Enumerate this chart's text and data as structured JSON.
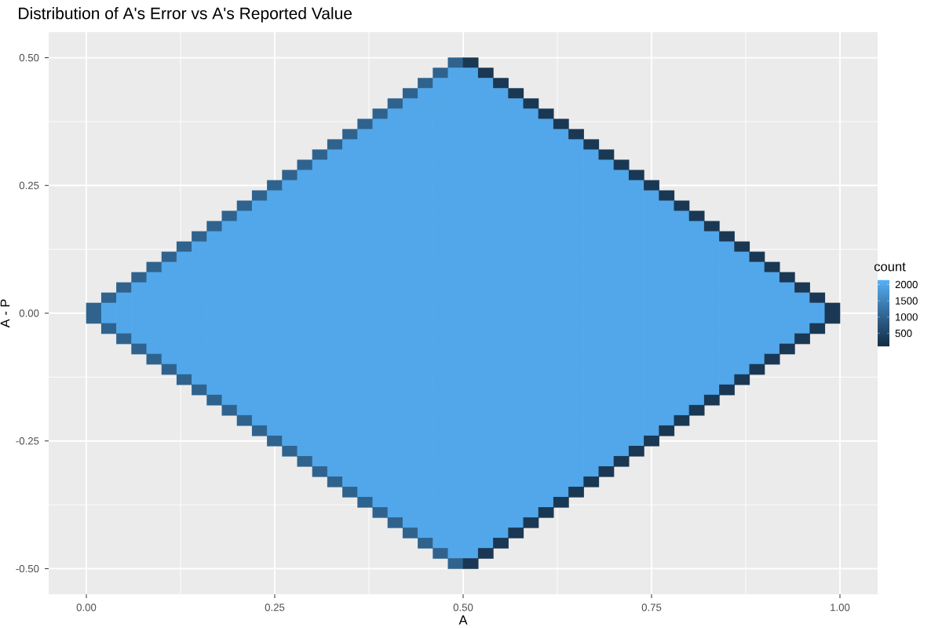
{
  "chart_data": {
    "type": "heatmap",
    "title": "Distribution of A's Error vs A's Reported Value",
    "xlabel": "A",
    "ylabel": "A - P",
    "clabel": "count",
    "x": [
      0.01,
      0.03,
      0.05,
      0.07,
      0.09,
      0.11,
      0.13,
      0.15,
      0.17,
      0.19,
      0.21,
      0.23,
      0.25,
      0.27,
      0.29,
      0.31,
      0.33,
      0.35,
      0.37,
      0.39,
      0.41,
      0.43,
      0.45,
      0.47,
      0.49,
      0.51,
      0.53,
      0.55,
      0.57,
      0.59,
      0.61,
      0.63,
      0.65,
      0.67,
      0.69,
      0.71,
      0.73,
      0.75,
      0.77,
      0.79,
      0.81,
      0.83,
      0.85,
      0.87,
      0.89,
      0.91,
      0.93,
      0.95,
      0.97,
      0.99
    ],
    "y": [
      0.49,
      0.47,
      0.45,
      0.43,
      0.41,
      0.39,
      0.37,
      0.35,
      0.33,
      0.31,
      0.29,
      0.27,
      0.25,
      0.23,
      0.21,
      0.19,
      0.17,
      0.15,
      0.13,
      0.11,
      0.09,
      0.07,
      0.05,
      0.03,
      0.01,
      -0.01,
      -0.03,
      -0.05,
      -0.07,
      -0.09,
      -0.11,
      -0.13,
      -0.15,
      -0.17,
      -0.19,
      -0.21,
      -0.23,
      -0.25,
      -0.27,
      -0.29,
      -0.31,
      -0.33,
      -0.35,
      -0.37,
      -0.39,
      -0.41,
      -0.43,
      -0.45,
      -0.47,
      -0.49
    ],
    "cells": [
      [
        null,
        null,
        null,
        null,
        null,
        null,
        null,
        null,
        null,
        null,
        null,
        null,
        null,
        null,
        null,
        null,
        null,
        null,
        null,
        null,
        null,
        null,
        null,
        null,
        1000,
        300,
        null,
        null,
        null,
        null,
        null,
        null,
        null,
        null,
        null,
        null,
        null,
        null,
        null,
        null,
        null,
        null,
        null,
        null,
        null,
        null,
        null,
        null,
        null,
        null
      ],
      [
        null,
        null,
        null,
        null,
        null,
        null,
        null,
        null,
        null,
        null,
        null,
        null,
        null,
        null,
        null,
        null,
        null,
        null,
        null,
        null,
        null,
        null,
        null,
        1000,
        2000,
        2000,
        300,
        null,
        null,
        null,
        null,
        null,
        null,
        null,
        null,
        null,
        null,
        null,
        null,
        null,
        null,
        null,
        null,
        null,
        null,
        null,
        null,
        null,
        null,
        null
      ],
      [
        null,
        null,
        null,
        null,
        null,
        null,
        null,
        null,
        null,
        null,
        null,
        null,
        null,
        null,
        null,
        null,
        null,
        null,
        null,
        null,
        null,
        null,
        1000,
        2000,
        2000,
        2000,
        2000,
        300,
        null,
        null,
        null,
        null,
        null,
        null,
        null,
        null,
        null,
        null,
        null,
        null,
        null,
        null,
        null,
        null,
        null,
        null,
        null,
        null,
        null,
        null
      ],
      [
        null,
        null,
        null,
        null,
        null,
        null,
        null,
        null,
        null,
        null,
        null,
        null,
        null,
        null,
        null,
        null,
        null,
        null,
        null,
        null,
        null,
        1000,
        2000,
        2000,
        2000,
        2000,
        2000,
        2000,
        300,
        null,
        null,
        null,
        null,
        null,
        null,
        null,
        null,
        null,
        null,
        null,
        null,
        null,
        null,
        null,
        null,
        null,
        null,
        null,
        null,
        null
      ],
      [
        null,
        null,
        null,
        null,
        null,
        null,
        null,
        null,
        null,
        null,
        null,
        null,
        null,
        null,
        null,
        null,
        null,
        null,
        null,
        null,
        1000,
        2000,
        2000,
        2000,
        2000,
        2000,
        2000,
        2000,
        2000,
        300,
        null,
        null,
        null,
        null,
        null,
        null,
        null,
        null,
        null,
        null,
        null,
        null,
        null,
        null,
        null,
        null,
        null,
        null,
        null,
        null
      ],
      [
        null,
        null,
        null,
        null,
        null,
        null,
        null,
        null,
        null,
        null,
        null,
        null,
        null,
        null,
        null,
        null,
        null,
        null,
        null,
        1000,
        2000,
        2000,
        2000,
        2000,
        2000,
        2000,
        2000,
        2000,
        2000,
        2000,
        300,
        null,
        null,
        null,
        null,
        null,
        null,
        null,
        null,
        null,
        null,
        null,
        null,
        null,
        null,
        null,
        null,
        null,
        null,
        null
      ],
      [
        null,
        null,
        null,
        null,
        null,
        null,
        null,
        null,
        null,
        null,
        null,
        null,
        null,
        null,
        null,
        null,
        null,
        null,
        1000,
        2000,
        2000,
        2000,
        2000,
        2000,
        2000,
        2000,
        2000,
        2000,
        2000,
        2000,
        2000,
        300,
        null,
        null,
        null,
        null,
        null,
        null,
        null,
        null,
        null,
        null,
        null,
        null,
        null,
        null,
        null,
        null,
        null,
        null
      ],
      [
        null,
        null,
        null,
        null,
        null,
        null,
        null,
        null,
        null,
        null,
        null,
        null,
        null,
        null,
        null,
        null,
        null,
        1000,
        2000,
        2000,
        2000,
        2000,
        2000,
        2000,
        2000,
        2000,
        2000,
        2000,
        2000,
        2000,
        2000,
        2000,
        300,
        null,
        null,
        null,
        null,
        null,
        null,
        null,
        null,
        null,
        null,
        null,
        null,
        null,
        null,
        null,
        null,
        null
      ],
      [
        null,
        null,
        null,
        null,
        null,
        null,
        null,
        null,
        null,
        null,
        null,
        null,
        null,
        null,
        null,
        null,
        1000,
        2000,
        2000,
        2000,
        2000,
        2000,
        2000,
        2000,
        2000,
        2000,
        2000,
        2000,
        2000,
        2000,
        2000,
        2000,
        2000,
        300,
        null,
        null,
        null,
        null,
        null,
        null,
        null,
        null,
        null,
        null,
        null,
        null,
        null,
        null,
        null,
        null
      ],
      [
        null,
        null,
        null,
        null,
        null,
        null,
        null,
        null,
        null,
        null,
        null,
        null,
        null,
        null,
        null,
        1000,
        2000,
        2000,
        2000,
        2000,
        2000,
        2000,
        2000,
        2000,
        2000,
        2000,
        2000,
        2000,
        2000,
        2000,
        2000,
        2000,
        2000,
        2000,
        300,
        null,
        null,
        null,
        null,
        null,
        null,
        null,
        null,
        null,
        null,
        null,
        null,
        null,
        null,
        null
      ],
      [
        null,
        null,
        null,
        null,
        null,
        null,
        null,
        null,
        null,
        null,
        null,
        null,
        null,
        null,
        1000,
        2000,
        2000,
        2000,
        2000,
        2000,
        2000,
        2000,
        2000,
        2000,
        2000,
        2000,
        2000,
        2000,
        2000,
        2000,
        2000,
        2000,
        2000,
        2000,
        2000,
        300,
        null,
        null,
        null,
        null,
        null,
        null,
        null,
        null,
        null,
        null,
        null,
        null,
        null,
        null
      ],
      [
        null,
        null,
        null,
        null,
        null,
        null,
        null,
        null,
        null,
        null,
        null,
        null,
        null,
        1000,
        2000,
        2000,
        2000,
        2000,
        2000,
        2000,
        2000,
        2000,
        2000,
        2000,
        2000,
        2000,
        2000,
        2000,
        2000,
        2000,
        2000,
        2000,
        2000,
        2000,
        2000,
        2000,
        300,
        null,
        null,
        null,
        null,
        null,
        null,
        null,
        null,
        null,
        null,
        null,
        null,
        null
      ],
      [
        null,
        null,
        null,
        null,
        null,
        null,
        null,
        null,
        null,
        null,
        null,
        null,
        1000,
        2000,
        2000,
        2000,
        2000,
        2000,
        2000,
        2000,
        2000,
        2000,
        2000,
        2000,
        2000,
        2000,
        2000,
        2000,
        2000,
        2000,
        2000,
        2000,
        2000,
        2000,
        2000,
        2000,
        2000,
        300,
        null,
        null,
        null,
        null,
        null,
        null,
        null,
        null,
        null,
        null,
        null,
        null
      ],
      [
        null,
        null,
        null,
        null,
        null,
        null,
        null,
        null,
        null,
        null,
        null,
        1000,
        2000,
        2000,
        2000,
        2000,
        2000,
        2000,
        2000,
        2000,
        2000,
        2000,
        2000,
        2000,
        2000,
        2000,
        2000,
        2000,
        2000,
        2000,
        2000,
        2000,
        2000,
        2000,
        2000,
        2000,
        2000,
        2000,
        300,
        null,
        null,
        null,
        null,
        null,
        null,
        null,
        null,
        null,
        null,
        null
      ],
      [
        null,
        null,
        null,
        null,
        null,
        null,
        null,
        null,
        null,
        null,
        1000,
        2000,
        2000,
        2000,
        2000,
        2000,
        2000,
        2000,
        2000,
        2000,
        2000,
        2000,
        2000,
        2000,
        2000,
        2000,
        2000,
        2000,
        2000,
        2000,
        2000,
        2000,
        2000,
        2000,
        2000,
        2000,
        2000,
        2000,
        2000,
        300,
        null,
        null,
        null,
        null,
        null,
        null,
        null,
        null,
        null,
        null
      ],
      [
        null,
        null,
        null,
        null,
        null,
        null,
        null,
        null,
        null,
        1000,
        2000,
        2000,
        2000,
        2000,
        2000,
        2000,
        2000,
        2000,
        2000,
        2000,
        2000,
        2000,
        2000,
        2000,
        2000,
        2000,
        2000,
        2000,
        2000,
        2000,
        2000,
        2000,
        2000,
        2000,
        2000,
        2000,
        2000,
        2000,
        2000,
        2000,
        300,
        null,
        null,
        null,
        null,
        null,
        null,
        null,
        null,
        null
      ],
      [
        null,
        null,
        null,
        null,
        null,
        null,
        null,
        null,
        1000,
        2000,
        2000,
        2000,
        2000,
        2000,
        2000,
        2000,
        2000,
        2000,
        2000,
        2000,
        2000,
        2000,
        2000,
        2000,
        2000,
        2000,
        2000,
        2000,
        2000,
        2000,
        2000,
        2000,
        2000,
        2000,
        2000,
        2000,
        2000,
        2000,
        2000,
        2000,
        2000,
        300,
        null,
        null,
        null,
        null,
        null,
        null,
        null,
        null
      ],
      [
        null,
        null,
        null,
        null,
        null,
        null,
        null,
        1000,
        2000,
        2000,
        2000,
        2000,
        2000,
        2000,
        2000,
        2000,
        2000,
        2000,
        2000,
        2000,
        2000,
        2000,
        2000,
        2000,
        2000,
        2000,
        2000,
        2000,
        2000,
        2000,
        2000,
        2000,
        2000,
        2000,
        2000,
        2000,
        2000,
        2000,
        2000,
        2000,
        2000,
        2000,
        300,
        null,
        null,
        null,
        null,
        null,
        null,
        null
      ],
      [
        null,
        null,
        null,
        null,
        null,
        null,
        1000,
        2000,
        2000,
        2000,
        2000,
        2000,
        2000,
        2000,
        2000,
        2000,
        2000,
        2000,
        2000,
        2000,
        2000,
        2000,
        2000,
        2000,
        2000,
        2000,
        2000,
        2000,
        2000,
        2000,
        2000,
        2000,
        2000,
        2000,
        2000,
        2000,
        2000,
        2000,
        2000,
        2000,
        2000,
        2000,
        2000,
        300,
        null,
        null,
        null,
        null,
        null,
        null
      ],
      [
        null,
        null,
        null,
        null,
        null,
        1000,
        2000,
        2000,
        2000,
        2000,
        2000,
        2000,
        2000,
        2000,
        2000,
        2000,
        2000,
        2000,
        2000,
        2000,
        2000,
        2000,
        2000,
        2000,
        2000,
        2000,
        2000,
        2000,
        2000,
        2000,
        2000,
        2000,
        2000,
        2000,
        2000,
        2000,
        2000,
        2000,
        2000,
        2000,
        2000,
        2000,
        2000,
        2000,
        300,
        null,
        null,
        null,
        null,
        null
      ],
      [
        null,
        null,
        null,
        null,
        1000,
        2000,
        2000,
        2000,
        2000,
        2000,
        2000,
        2000,
        2000,
        2000,
        2000,
        2000,
        2000,
        2000,
        2000,
        2000,
        2000,
        2000,
        2000,
        2000,
        2000,
        2000,
        2000,
        2000,
        2000,
        2000,
        2000,
        2000,
        2000,
        2000,
        2000,
        2000,
        2000,
        2000,
        2000,
        2000,
        2000,
        2000,
        2000,
        2000,
        2000,
        300,
        null,
        null,
        null,
        null
      ],
      [
        null,
        null,
        null,
        1000,
        2000,
        2000,
        2000,
        2000,
        2000,
        2000,
        2000,
        2000,
        2000,
        2000,
        2000,
        2000,
        2000,
        2000,
        2000,
        2000,
        2000,
        2000,
        2000,
        2000,
        2000,
        2000,
        2000,
        2000,
        2000,
        2000,
        2000,
        2000,
        2000,
        2000,
        2000,
        2000,
        2000,
        2000,
        2000,
        2000,
        2000,
        2000,
        2000,
        2000,
        2000,
        2000,
        300,
        null,
        null,
        null
      ],
      [
        null,
        null,
        1000,
        2000,
        2000,
        2000,
        2000,
        2000,
        2000,
        2000,
        2000,
        2000,
        2000,
        2000,
        2000,
        2000,
        2000,
        2000,
        2000,
        2000,
        2000,
        2000,
        2000,
        2000,
        2000,
        2000,
        2000,
        2000,
        2000,
        2000,
        2000,
        2000,
        2000,
        2000,
        2000,
        2000,
        2000,
        2000,
        2000,
        2000,
        2000,
        2000,
        2000,
        2000,
        2000,
        2000,
        2000,
        300,
        null,
        null
      ],
      [
        null,
        1000,
        2000,
        2000,
        2000,
        2000,
        2000,
        2000,
        2000,
        2000,
        2000,
        2000,
        2000,
        2000,
        2000,
        2000,
        2000,
        2000,
        2000,
        2000,
        2000,
        2000,
        2000,
        2000,
        2000,
        2000,
        2000,
        2000,
        2000,
        2000,
        2000,
        2000,
        2000,
        2000,
        2000,
        2000,
        2000,
        2000,
        2000,
        2000,
        2000,
        2000,
        2000,
        2000,
        2000,
        2000,
        2000,
        2000,
        300,
        null
      ],
      [
        1000,
        2000,
        2000,
        2000,
        2000,
        2000,
        2000,
        2000,
        2000,
        2000,
        2000,
        2000,
        2000,
        2000,
        2000,
        2000,
        2000,
        2000,
        2000,
        2000,
        2000,
        2000,
        2000,
        2000,
        2000,
        2000,
        2000,
        2000,
        2000,
        2000,
        2000,
        2000,
        2000,
        2000,
        2000,
        2000,
        2000,
        2000,
        2000,
        2000,
        2000,
        2000,
        2000,
        2000,
        2000,
        2000,
        2000,
        2000,
        2000,
        300
      ],
      [
        1000,
        2000,
        2000,
        2000,
        2000,
        2000,
        2000,
        2000,
        2000,
        2000,
        2000,
        2000,
        2000,
        2000,
        2000,
        2000,
        2000,
        2000,
        2000,
        2000,
        2000,
        2000,
        2000,
        2000,
        2000,
        2000,
        2000,
        2000,
        2000,
        2000,
        2000,
        2000,
        2000,
        2000,
        2000,
        2000,
        2000,
        2000,
        2000,
        2000,
        2000,
        2000,
        2000,
        2000,
        2000,
        2000,
        2000,
        2000,
        2000,
        300
      ],
      [
        null,
        1000,
        2000,
        2000,
        2000,
        2000,
        2000,
        2000,
        2000,
        2000,
        2000,
        2000,
        2000,
        2000,
        2000,
        2000,
        2000,
        2000,
        2000,
        2000,
        2000,
        2000,
        2000,
        2000,
        2000,
        2000,
        2000,
        2000,
        2000,
        2000,
        2000,
        2000,
        2000,
        2000,
        2000,
        2000,
        2000,
        2000,
        2000,
        2000,
        2000,
        2000,
        2000,
        2000,
        2000,
        2000,
        2000,
        2000,
        300,
        null
      ],
      [
        null,
        null,
        1000,
        2000,
        2000,
        2000,
        2000,
        2000,
        2000,
        2000,
        2000,
        2000,
        2000,
        2000,
        2000,
        2000,
        2000,
        2000,
        2000,
        2000,
        2000,
        2000,
        2000,
        2000,
        2000,
        2000,
        2000,
        2000,
        2000,
        2000,
        2000,
        2000,
        2000,
        2000,
        2000,
        2000,
        2000,
        2000,
        2000,
        2000,
        2000,
        2000,
        2000,
        2000,
        2000,
        2000,
        2000,
        300,
        null,
        null
      ],
      [
        null,
        null,
        null,
        1000,
        2000,
        2000,
        2000,
        2000,
        2000,
        2000,
        2000,
        2000,
        2000,
        2000,
        2000,
        2000,
        2000,
        2000,
        2000,
        2000,
        2000,
        2000,
        2000,
        2000,
        2000,
        2000,
        2000,
        2000,
        2000,
        2000,
        2000,
        2000,
        2000,
        2000,
        2000,
        2000,
        2000,
        2000,
        2000,
        2000,
        2000,
        2000,
        2000,
        2000,
        2000,
        2000,
        300,
        null,
        null,
        null
      ],
      [
        null,
        null,
        null,
        null,
        1000,
        2000,
        2000,
        2000,
        2000,
        2000,
        2000,
        2000,
        2000,
        2000,
        2000,
        2000,
        2000,
        2000,
        2000,
        2000,
        2000,
        2000,
        2000,
        2000,
        2000,
        2000,
        2000,
        2000,
        2000,
        2000,
        2000,
        2000,
        2000,
        2000,
        2000,
        2000,
        2000,
        2000,
        2000,
        2000,
        2000,
        2000,
        2000,
        2000,
        2000,
        300,
        null,
        null,
        null,
        null
      ],
      [
        null,
        null,
        null,
        null,
        null,
        1000,
        2000,
        2000,
        2000,
        2000,
        2000,
        2000,
        2000,
        2000,
        2000,
        2000,
        2000,
        2000,
        2000,
        2000,
        2000,
        2000,
        2000,
        2000,
        2000,
        2000,
        2000,
        2000,
        2000,
        2000,
        2000,
        2000,
        2000,
        2000,
        2000,
        2000,
        2000,
        2000,
        2000,
        2000,
        2000,
        2000,
        2000,
        2000,
        300,
        null,
        null,
        null,
        null,
        null
      ],
      [
        null,
        null,
        null,
        null,
        null,
        null,
        1000,
        2000,
        2000,
        2000,
        2000,
        2000,
        2000,
        2000,
        2000,
        2000,
        2000,
        2000,
        2000,
        2000,
        2000,
        2000,
        2000,
        2000,
        2000,
        2000,
        2000,
        2000,
        2000,
        2000,
        2000,
        2000,
        2000,
        2000,
        2000,
        2000,
        2000,
        2000,
        2000,
        2000,
        2000,
        2000,
        2000,
        300,
        null,
        null,
        null,
        null,
        null,
        null
      ],
      [
        null,
        null,
        null,
        null,
        null,
        null,
        null,
        1000,
        2000,
        2000,
        2000,
        2000,
        2000,
        2000,
        2000,
        2000,
        2000,
        2000,
        2000,
        2000,
        2000,
        2000,
        2000,
        2000,
        2000,
        2000,
        2000,
        2000,
        2000,
        2000,
        2000,
        2000,
        2000,
        2000,
        2000,
        2000,
        2000,
        2000,
        2000,
        2000,
        2000,
        2000,
        300,
        null,
        null,
        null,
        null,
        null,
        null,
        null
      ],
      [
        null,
        null,
        null,
        null,
        null,
        null,
        null,
        null,
        1000,
        2000,
        2000,
        2000,
        2000,
        2000,
        2000,
        2000,
        2000,
        2000,
        2000,
        2000,
        2000,
        2000,
        2000,
        2000,
        2000,
        2000,
        2000,
        2000,
        2000,
        2000,
        2000,
        2000,
        2000,
        2000,
        2000,
        2000,
        2000,
        2000,
        2000,
        2000,
        2000,
        300,
        null,
        null,
        null,
        null,
        null,
        null,
        null,
        null
      ],
      [
        null,
        null,
        null,
        null,
        null,
        null,
        null,
        null,
        null,
        1000,
        2000,
        2000,
        2000,
        2000,
        2000,
        2000,
        2000,
        2000,
        2000,
        2000,
        2000,
        2000,
        2000,
        2000,
        2000,
        2000,
        2000,
        2000,
        2000,
        2000,
        2000,
        2000,
        2000,
        2000,
        2000,
        2000,
        2000,
        2000,
        2000,
        2000,
        300,
        null,
        null,
        null,
        null,
        null,
        null,
        null,
        null,
        null
      ],
      [
        null,
        null,
        null,
        null,
        null,
        null,
        null,
        null,
        null,
        null,
        1000,
        2000,
        2000,
        2000,
        2000,
        2000,
        2000,
        2000,
        2000,
        2000,
        2000,
        2000,
        2000,
        2000,
        2000,
        2000,
        2000,
        2000,
        2000,
        2000,
        2000,
        2000,
        2000,
        2000,
        2000,
        2000,
        2000,
        2000,
        2000,
        300,
        null,
        null,
        null,
        null,
        null,
        null,
        null,
        null,
        null,
        null
      ],
      [
        null,
        null,
        null,
        null,
        null,
        null,
        null,
        null,
        null,
        null,
        null,
        1000,
        2000,
        2000,
        2000,
        2000,
        2000,
        2000,
        2000,
        2000,
        2000,
        2000,
        2000,
        2000,
        2000,
        2000,
        2000,
        2000,
        2000,
        2000,
        2000,
        2000,
        2000,
        2000,
        2000,
        2000,
        2000,
        2000,
        300,
        null,
        null,
        null,
        null,
        null,
        null,
        null,
        null,
        null,
        null,
        null
      ],
      [
        null,
        null,
        null,
        null,
        null,
        null,
        null,
        null,
        null,
        null,
        null,
        null,
        1000,
        2000,
        2000,
        2000,
        2000,
        2000,
        2000,
        2000,
        2000,
        2000,
        2000,
        2000,
        2000,
        2000,
        2000,
        2000,
        2000,
        2000,
        2000,
        2000,
        2000,
        2000,
        2000,
        2000,
        2000,
        300,
        null,
        null,
        null,
        null,
        null,
        null,
        null,
        null,
        null,
        null,
        null,
        null
      ],
      [
        null,
        null,
        null,
        null,
        null,
        null,
        null,
        null,
        null,
        null,
        null,
        null,
        null,
        1000,
        2000,
        2000,
        2000,
        2000,
        2000,
        2000,
        2000,
        2000,
        2000,
        2000,
        2000,
        2000,
        2000,
        2000,
        2000,
        2000,
        2000,
        2000,
        2000,
        2000,
        2000,
        2000,
        300,
        null,
        null,
        null,
        null,
        null,
        null,
        null,
        null,
        null,
        null,
        null,
        null,
        null
      ],
      [
        null,
        null,
        null,
        null,
        null,
        null,
        null,
        null,
        null,
        null,
        null,
        null,
        null,
        null,
        1000,
        2000,
        2000,
        2000,
        2000,
        2000,
        2000,
        2000,
        2000,
        2000,
        2000,
        2000,
        2000,
        2000,
        2000,
        2000,
        2000,
        2000,
        2000,
        2000,
        2000,
        300,
        null,
        null,
        null,
        null,
        null,
        null,
        null,
        null,
        null,
        null,
        null,
        null,
        null,
        null
      ],
      [
        null,
        null,
        null,
        null,
        null,
        null,
        null,
        null,
        null,
        null,
        null,
        null,
        null,
        null,
        null,
        1000,
        2000,
        2000,
        2000,
        2000,
        2000,
        2000,
        2000,
        2000,
        2000,
        2000,
        2000,
        2000,
        2000,
        2000,
        2000,
        2000,
        2000,
        2000,
        300,
        null,
        null,
        null,
        null,
        null,
        null,
        null,
        null,
        null,
        null,
        null,
        null,
        null,
        null,
        null
      ],
      [
        null,
        null,
        null,
        null,
        null,
        null,
        null,
        null,
        null,
        null,
        null,
        null,
        null,
        null,
        null,
        null,
        1000,
        2000,
        2000,
        2000,
        2000,
        2000,
        2000,
        2000,
        2000,
        2000,
        2000,
        2000,
        2000,
        2000,
        2000,
        2000,
        2000,
        300,
        null,
        null,
        null,
        null,
        null,
        null,
        null,
        null,
        null,
        null,
        null,
        null,
        null,
        null,
        null,
        null
      ],
      [
        null,
        null,
        null,
        null,
        null,
        null,
        null,
        null,
        null,
        null,
        null,
        null,
        null,
        null,
        null,
        null,
        null,
        1000,
        2000,
        2000,
        2000,
        2000,
        2000,
        2000,
        2000,
        2000,
        2000,
        2000,
        2000,
        2000,
        2000,
        2000,
        300,
        null,
        null,
        null,
        null,
        null,
        null,
        null,
        null,
        null,
        null,
        null,
        null,
        null,
        null,
        null,
        null,
        null
      ],
      [
        null,
        null,
        null,
        null,
        null,
        null,
        null,
        null,
        null,
        null,
        null,
        null,
        null,
        null,
        null,
        null,
        null,
        null,
        1000,
        2000,
        2000,
        2000,
        2000,
        2000,
        2000,
        2000,
        2000,
        2000,
        2000,
        2000,
        2000,
        300,
        null,
        null,
        null,
        null,
        null,
        null,
        null,
        null,
        null,
        null,
        null,
        null,
        null,
        null,
        null,
        null,
        null,
        null
      ],
      [
        null,
        null,
        null,
        null,
        null,
        null,
        null,
        null,
        null,
        null,
        null,
        null,
        null,
        null,
        null,
        null,
        null,
        null,
        null,
        1000,
        2000,
        2000,
        2000,
        2000,
        2000,
        2000,
        2000,
        2000,
        2000,
        2000,
        300,
        null,
        null,
        null,
        null,
        null,
        null,
        null,
        null,
        null,
        null,
        null,
        null,
        null,
        null,
        null,
        null,
        null,
        null,
        null
      ],
      [
        null,
        null,
        null,
        null,
        null,
        null,
        null,
        null,
        null,
        null,
        null,
        null,
        null,
        null,
        null,
        null,
        null,
        null,
        null,
        null,
        1000,
        2000,
        2000,
        2000,
        2000,
        2000,
        2000,
        2000,
        2000,
        300,
        null,
        null,
        null,
        null,
        null,
        null,
        null,
        null,
        null,
        null,
        null,
        null,
        null,
        null,
        null,
        null,
        null,
        null,
        null,
        null
      ],
      [
        null,
        null,
        null,
        null,
        null,
        null,
        null,
        null,
        null,
        null,
        null,
        null,
        null,
        null,
        null,
        null,
        null,
        null,
        null,
        null,
        null,
        1000,
        2000,
        2000,
        2000,
        2000,
        2000,
        2000,
        300,
        null,
        null,
        null,
        null,
        null,
        null,
        null,
        null,
        null,
        null,
        null,
        null,
        null,
        null,
        null,
        null,
        null,
        null,
        null,
        null,
        null
      ],
      [
        null,
        null,
        null,
        null,
        null,
        null,
        null,
        null,
        null,
        null,
        null,
        null,
        null,
        null,
        null,
        null,
        null,
        null,
        null,
        null,
        null,
        null,
        1000,
        2000,
        2000,
        2000,
        2000,
        300,
        null,
        null,
        null,
        null,
        null,
        null,
        null,
        null,
        null,
        null,
        null,
        null,
        null,
        null,
        null,
        null,
        null,
        null,
        null,
        null,
        null,
        null
      ],
      [
        null,
        null,
        null,
        null,
        null,
        null,
        null,
        null,
        null,
        null,
        null,
        null,
        null,
        null,
        null,
        null,
        null,
        null,
        null,
        null,
        null,
        null,
        null,
        1000,
        2000,
        2000,
        300,
        null,
        null,
        null,
        null,
        null,
        null,
        null,
        null,
        null,
        null,
        null,
        null,
        null,
        null,
        null,
        null,
        null,
        null,
        null,
        null,
        null,
        null,
        null
      ],
      [
        null,
        null,
        null,
        null,
        null,
        null,
        null,
        null,
        null,
        null,
        null,
        null,
        null,
        null,
        null,
        null,
        null,
        null,
        null,
        null,
        null,
        null,
        null,
        null,
        1000,
        300,
        null,
        null,
        null,
        null,
        null,
        null,
        null,
        null,
        null,
        null,
        null,
        null,
        null,
        null,
        null,
        null,
        null,
        null,
        null,
        null,
        null,
        null,
        null,
        null
      ]
    ],
    "clim": [
      90,
      2145
    ],
    "cticks": [
      500,
      1000,
      1500,
      2000
    ],
    "xlim": [
      -0.05,
      1.05
    ],
    "ylim": [
      -0.55,
      0.55
    ],
    "xticks": [
      {
        "value": 0,
        "label": "0.00"
      },
      {
        "value": 0.25,
        "label": "0.25"
      },
      {
        "value": 0.5,
        "label": "0.50"
      },
      {
        "value": 0.75,
        "label": "0.75"
      },
      {
        "value": 1,
        "label": "1.00"
      }
    ],
    "yticks": [
      {
        "value": -0.5,
        "label": "-0.50"
      },
      {
        "value": -0.25,
        "label": "-0.25"
      },
      {
        "value": 0,
        "label": "0.00"
      },
      {
        "value": 0.25,
        "label": "0.25"
      },
      {
        "value": 0.5,
        "label": "0.50"
      }
    ],
    "grid": true
  }
}
